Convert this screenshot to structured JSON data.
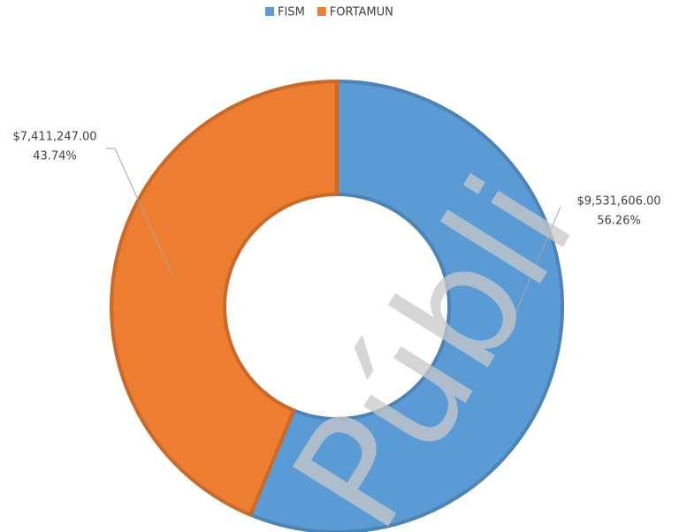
{
  "chart_data": {
    "type": "donut",
    "categories": [
      "FISM",
      "FORTAMUN"
    ],
    "values": [
      9531606,
      7411247
    ],
    "value_labels": [
      "$9,531,606.00",
      "$7,411,247.00"
    ],
    "percent_values": [
      56.26,
      43.74
    ],
    "percent_labels": [
      "56.26%",
      "43.74%"
    ],
    "colors": [
      "#5b9bd5",
      "#ed7d31"
    ],
    "legend": "top",
    "watermark": "Públi"
  }
}
